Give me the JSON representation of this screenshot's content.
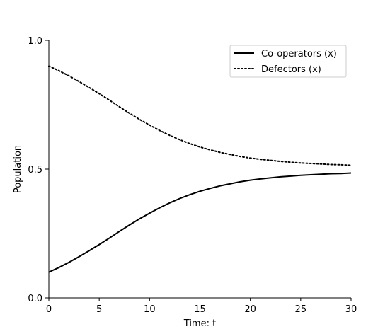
{
  "chart_data": {
    "type": "line",
    "title": "",
    "xlabel": "Time: t",
    "ylabel": "Population",
    "xlim": [
      0,
      30
    ],
    "ylim": [
      0,
      1
    ],
    "xticks": [
      0,
      5,
      10,
      15,
      20,
      25,
      30
    ],
    "xtick_labels": [
      "0",
      "5",
      "10",
      "15",
      "20",
      "25",
      "30"
    ],
    "yticks": [
      0,
      0.5,
      1
    ],
    "ytick_labels": [
      "0.0",
      "0.5",
      "1.0"
    ],
    "grid": false,
    "legend_position": "top-right",
    "series": [
      {
        "name": "Co-operators (x)",
        "style": "solid",
        "color": "#000000",
        "x": [
          0,
          1,
          2,
          3,
          4,
          5,
          6,
          7,
          8,
          9,
          10,
          11,
          12,
          13,
          14,
          15,
          16,
          17,
          18,
          19,
          20,
          21,
          22,
          23,
          24,
          25,
          26,
          27,
          28,
          29,
          30
        ],
        "y": [
          0.1,
          0.118,
          0.138,
          0.16,
          0.183,
          0.207,
          0.232,
          0.258,
          0.283,
          0.307,
          0.329,
          0.35,
          0.369,
          0.386,
          0.401,
          0.414,
          0.425,
          0.435,
          0.443,
          0.451,
          0.457,
          0.462,
          0.466,
          0.47,
          0.473,
          0.476,
          0.478,
          0.48,
          0.482,
          0.483,
          0.485
        ]
      },
      {
        "name": "Defectors (x)",
        "style": "dotted",
        "color": "#000000",
        "x": [
          0,
          1,
          2,
          3,
          4,
          5,
          6,
          7,
          8,
          9,
          10,
          11,
          12,
          13,
          14,
          15,
          16,
          17,
          18,
          19,
          20,
          21,
          22,
          23,
          24,
          25,
          26,
          27,
          28,
          29,
          30
        ],
        "y": [
          0.9,
          0.882,
          0.862,
          0.84,
          0.817,
          0.793,
          0.768,
          0.742,
          0.717,
          0.693,
          0.671,
          0.65,
          0.631,
          0.614,
          0.599,
          0.586,
          0.575,
          0.565,
          0.557,
          0.549,
          0.543,
          0.538,
          0.534,
          0.53,
          0.527,
          0.524,
          0.522,
          0.52,
          0.518,
          0.517,
          0.515
        ]
      }
    ]
  }
}
